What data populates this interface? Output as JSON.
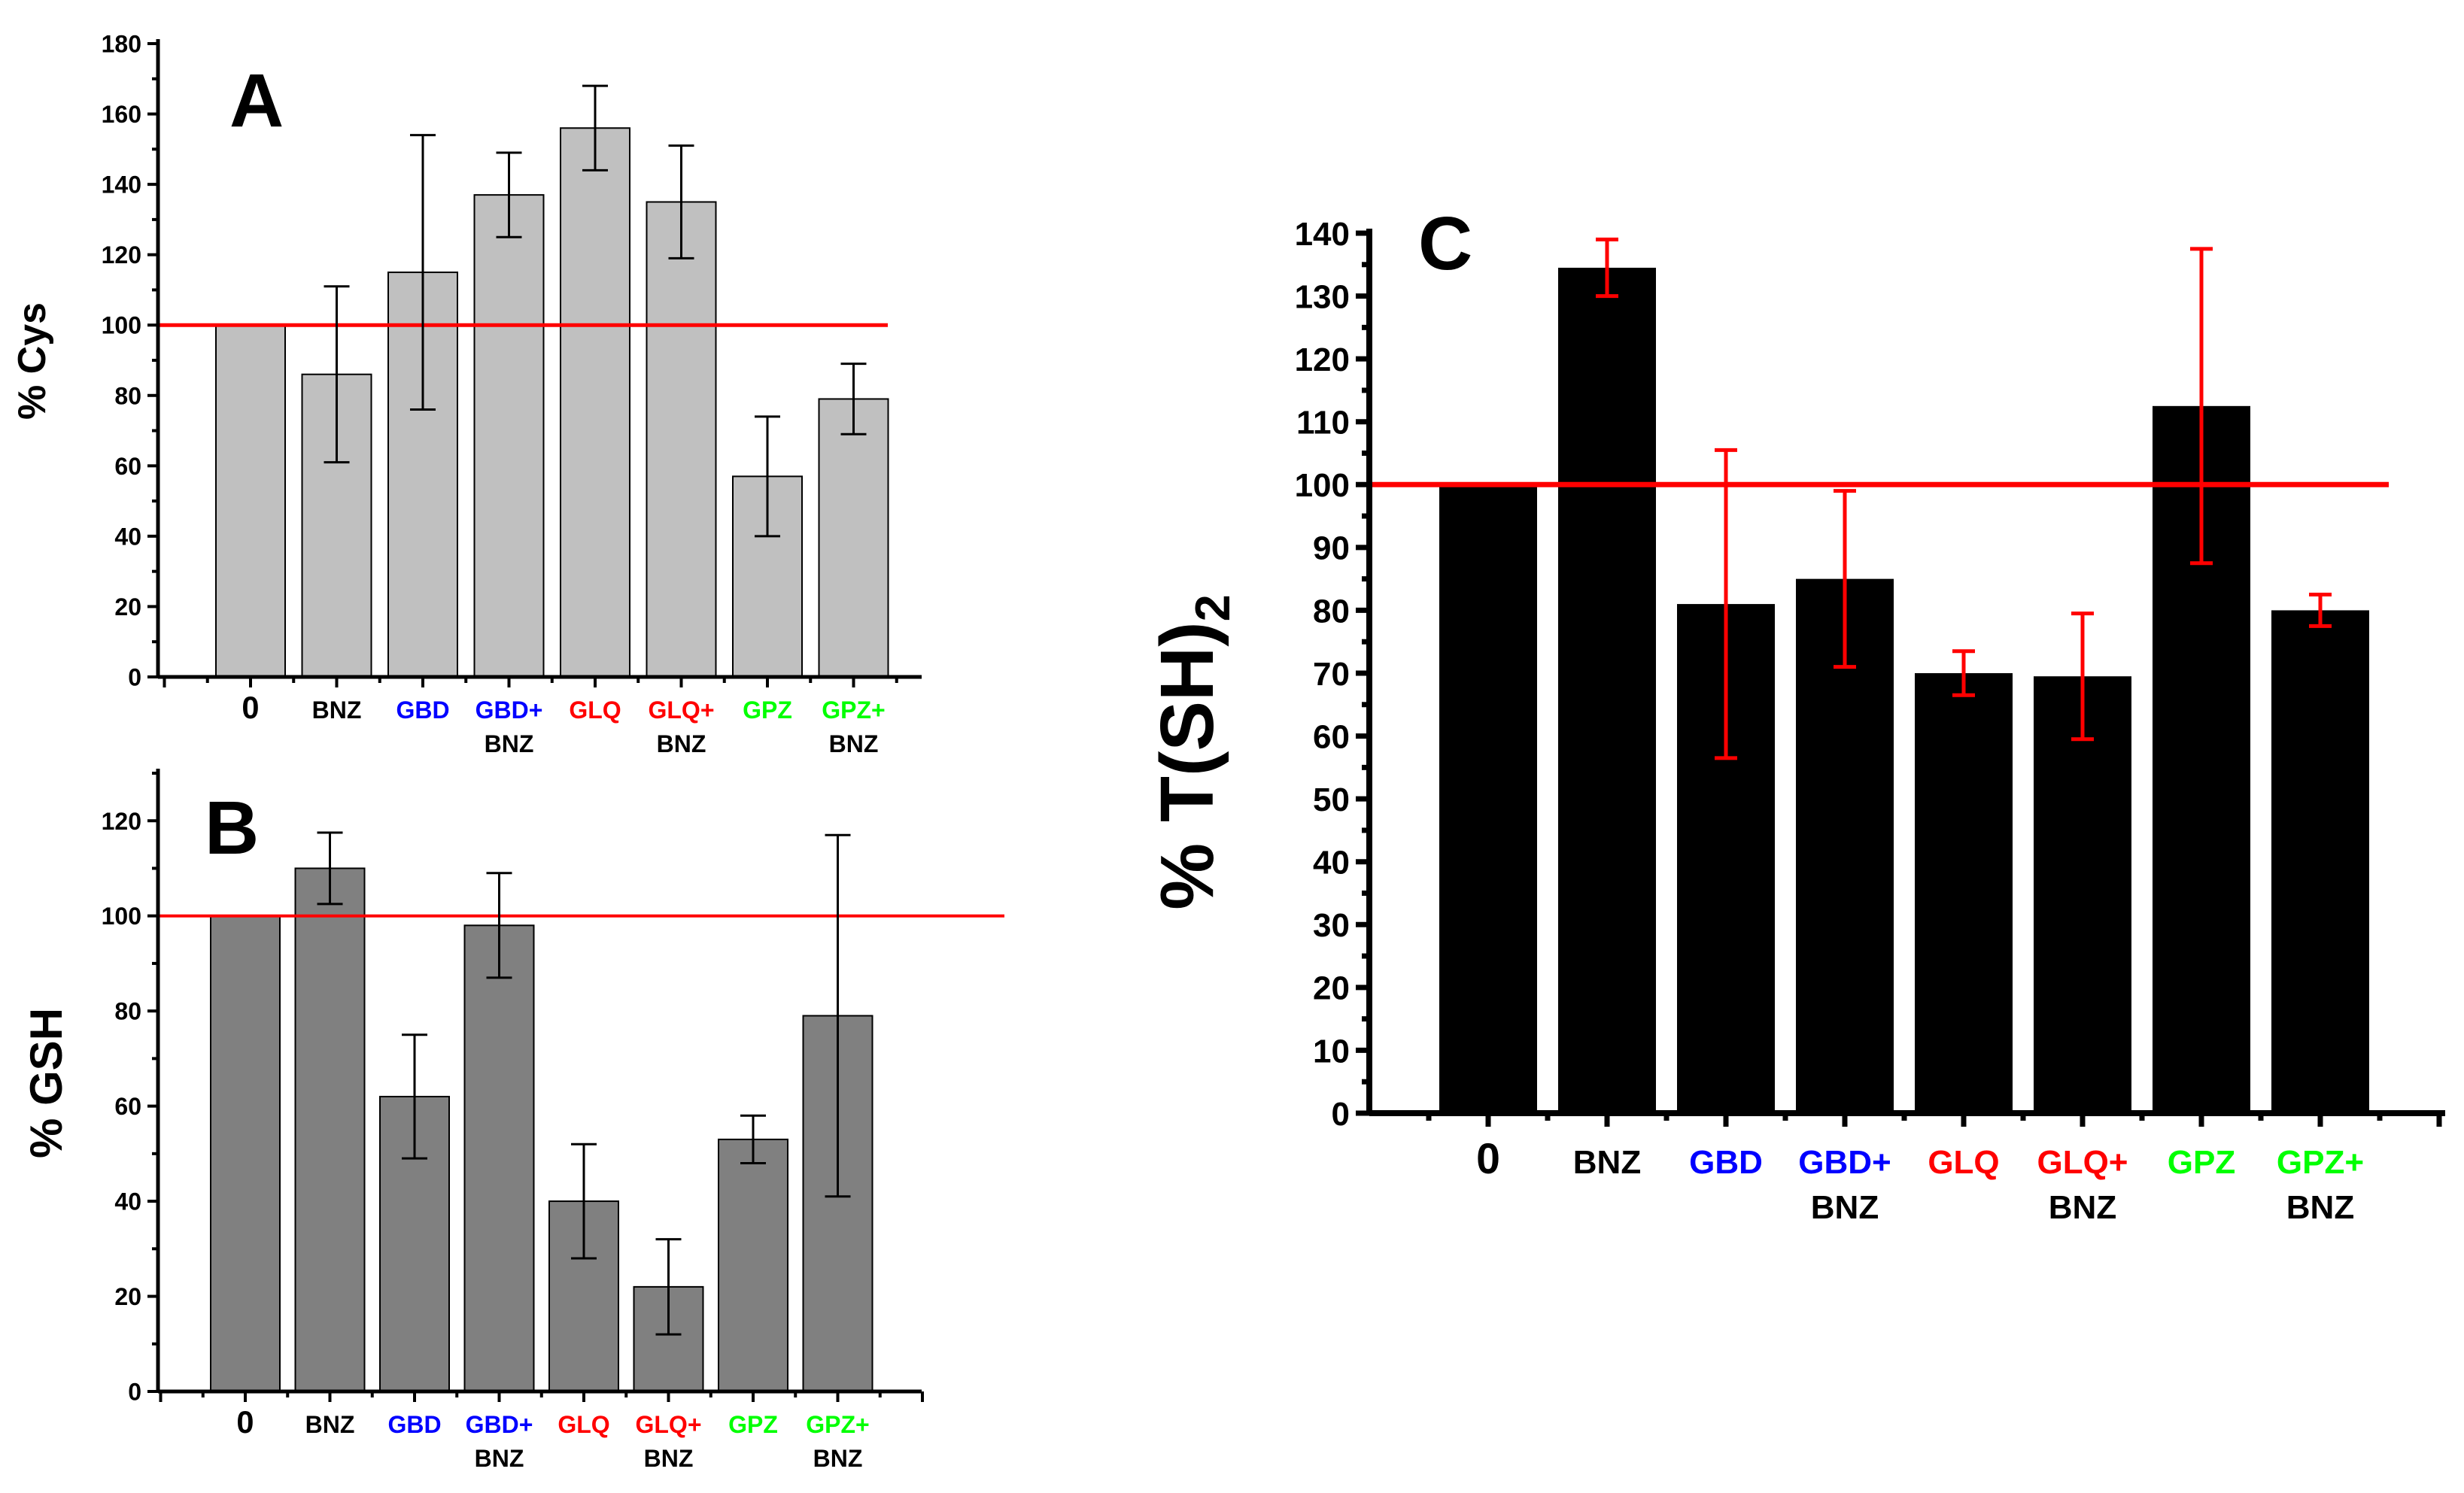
{
  "colors": {
    "ref_line": "#ff0000",
    "axis": "#000000",
    "err_dark": "#000000",
    "err_red": "#ff0000",
    "label_default": "#000000",
    "label_GBD": "#0000ff",
    "label_GLQ": "#ff0000",
    "label_GPZ": "#00ff00"
  },
  "chart_data": [
    {
      "id": "A",
      "type": "bar",
      "panel_label": "A",
      "ylabel": "% Cys",
      "ylim": [
        0,
        180
      ],
      "ytick_step": 20,
      "ytick_minor": 10,
      "ref_value": 100,
      "bar_color": "#c0c0c0",
      "err_color": "#000000",
      "categories": [
        {
          "line1": "0",
          "line2": "",
          "group": "default"
        },
        {
          "line1": "BNZ",
          "line2": "",
          "group": "default"
        },
        {
          "line1": "GBD",
          "line2": "",
          "group": "GBD"
        },
        {
          "line1": "GBD+",
          "line2": "BNZ",
          "group": "GBD"
        },
        {
          "line1": "GLQ",
          "line2": "",
          "group": "GLQ"
        },
        {
          "line1": "GLQ+",
          "line2": "BNZ",
          "group": "GLQ"
        },
        {
          "line1": "GPZ",
          "line2": "",
          "group": "GPZ"
        },
        {
          "line1": "GPZ+",
          "line2": "BNZ",
          "group": "GPZ"
        }
      ],
      "values": [
        100,
        86,
        115,
        137,
        156,
        135,
        57,
        79
      ],
      "errors": [
        0,
        25,
        39,
        12,
        12,
        16,
        17,
        10
      ]
    },
    {
      "id": "B",
      "type": "bar",
      "panel_label": "B",
      "ylabel": "% GSH",
      "ylim": [
        0,
        130
      ],
      "ytick_step": 20,
      "ytick_minor": 10,
      "ref_value": 100,
      "bar_color": "#808080",
      "err_color": "#000000",
      "categories": [
        {
          "line1": "0",
          "line2": "",
          "group": "default"
        },
        {
          "line1": "BNZ",
          "line2": "",
          "group": "default"
        },
        {
          "line1": "GBD",
          "line2": "",
          "group": "GBD"
        },
        {
          "line1": "GBD+",
          "line2": "BNZ",
          "group": "GBD"
        },
        {
          "line1": "GLQ",
          "line2": "",
          "group": "GLQ"
        },
        {
          "line1": "GLQ+",
          "line2": "BNZ",
          "group": "GLQ"
        },
        {
          "line1": "GPZ",
          "line2": "",
          "group": "GPZ"
        },
        {
          "line1": "GPZ+",
          "line2": "BNZ",
          "group": "GPZ"
        }
      ],
      "values": [
        100,
        110,
        62,
        98,
        40,
        22,
        53,
        79
      ],
      "errors": [
        0,
        7.5,
        13,
        11,
        12,
        10,
        5,
        38
      ]
    },
    {
      "id": "C",
      "type": "bar",
      "panel_label": "C",
      "ylabel_main": "% T(SH)",
      "ylabel_sub": "2",
      "ylim": [
        0,
        140
      ],
      "ytick_step": 10,
      "ytick_minor": 5,
      "ref_value": 100,
      "bar_color": "#000000",
      "err_color": "#ff0000",
      "categories": [
        {
          "line1": "0",
          "line2": "",
          "group": "default"
        },
        {
          "line1": "BNZ",
          "line2": "",
          "group": "default"
        },
        {
          "line1": "GBD",
          "line2": "",
          "group": "GBD"
        },
        {
          "line1": "GBD+",
          "line2": "BNZ",
          "group": "GBD"
        },
        {
          "line1": "GLQ",
          "line2": "",
          "group": "GLQ"
        },
        {
          "line1": "GLQ+",
          "line2": "BNZ",
          "group": "GLQ"
        },
        {
          "line1": "GPZ",
          "line2": "",
          "group": "GPZ"
        },
        {
          "line1": "GPZ+",
          "line2": "BNZ",
          "group": "GPZ"
        }
      ],
      "values": [
        100,
        134.5,
        81,
        85,
        70,
        69.5,
        112.5,
        80
      ],
      "errors": [
        0,
        4.5,
        24.5,
        14,
        3.5,
        10,
        25,
        2.5
      ]
    }
  ]
}
